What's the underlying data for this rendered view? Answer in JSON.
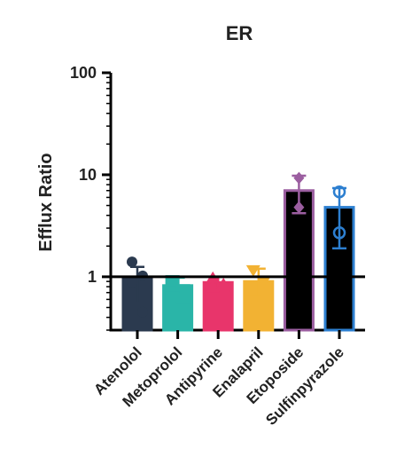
{
  "chart_data": {
    "type": "bar",
    "title": "ER",
    "ylabel": "Efflux Ratio",
    "xlabel": "",
    "yscale": "log",
    "ylim": [
      0.3,
      100
    ],
    "yticks": [
      {
        "value": 1,
        "label": "1"
      },
      {
        "value": 10,
        "label": "10"
      },
      {
        "value": 100,
        "label": "100"
      }
    ],
    "reference_line": 1,
    "categories": [
      {
        "name": "Atenolol",
        "mean": 0.95,
        "err_low": 0.55,
        "err_high": 1.25,
        "color": "#2b3a4f",
        "bar_fill": "#2b3a4f",
        "marker": "circle",
        "points": [
          1.4,
          1.02,
          0.88,
          0.45
        ]
      },
      {
        "name": "Metoprolol",
        "mean": 0.82,
        "err_low": 0.68,
        "err_high": 0.98,
        "color": "#2ab5a8",
        "bar_fill": "#2ab5a8",
        "marker": "square",
        "points": [
          0.92,
          0.75,
          0.63,
          0.61
        ]
      },
      {
        "name": "Antipyrine",
        "mean": 0.88,
        "err_low": 0.78,
        "err_high": 1.0,
        "color": "#e8356b",
        "bar_fill": "#e8356b",
        "marker": "triangle-up",
        "points": [
          0.98,
          0.8,
          0.79,
          0.85
        ]
      },
      {
        "name": "Enalapril",
        "mean": 0.9,
        "err_low": 0.55,
        "err_high": 1.2,
        "color": "#f2b233",
        "bar_fill": "#f2b233",
        "marker": "triangle-down",
        "points": [
          1.15,
          0.9,
          0.58
        ]
      },
      {
        "name": "Etoposide",
        "mean": 7.0,
        "err_low": 4.2,
        "err_high": 9.8,
        "color": "#9b5ea0",
        "bar_fill": "#000000",
        "marker": "diamond",
        "points": [
          9.3,
          4.8
        ]
      },
      {
        "name": "Sulfinpyrazole",
        "mean": 4.8,
        "err_low": 1.9,
        "err_high": 7.4,
        "color": "#2d7fd0",
        "bar_fill": "#000000",
        "marker": "hexagon",
        "points": [
          6.8,
          2.7
        ]
      }
    ]
  }
}
